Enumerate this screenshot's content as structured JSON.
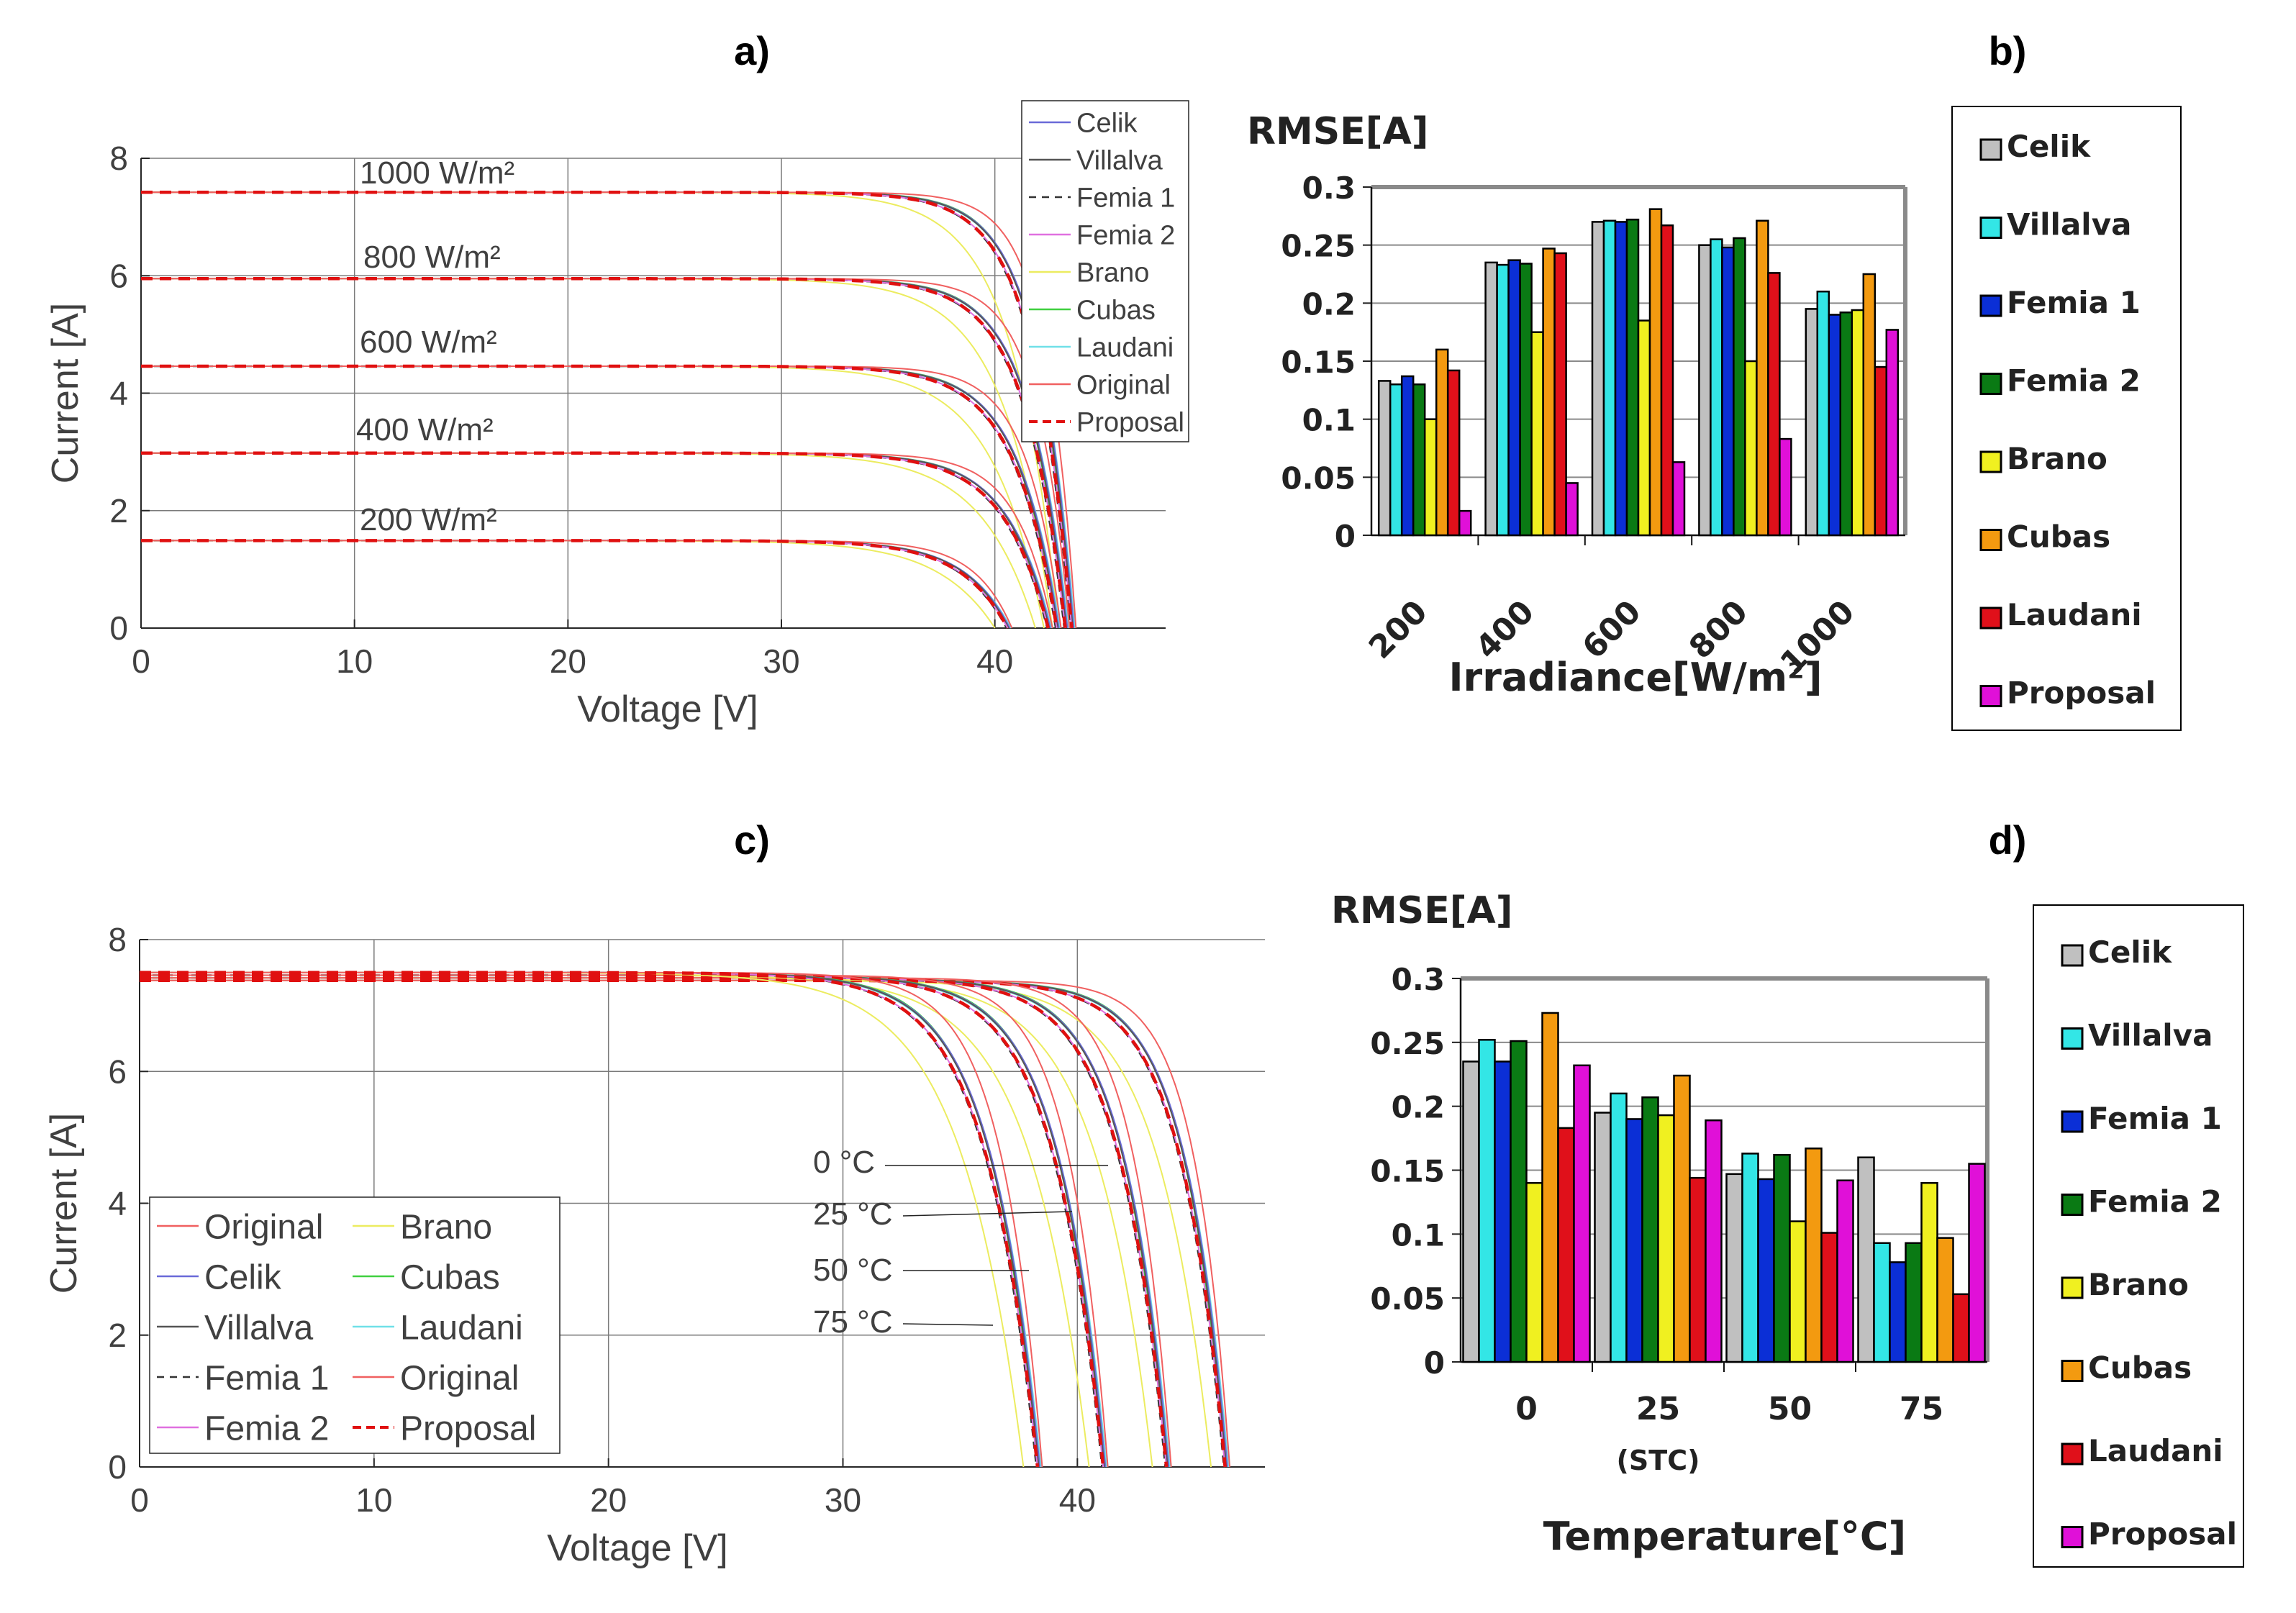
{
  "chart_data": [
    {
      "panel": "a)",
      "type": "line",
      "xlabel": "Voltage [V]",
      "ylabel": "Current [A]",
      "xlim": [
        0,
        48
      ],
      "ylim": [
        0,
        8
      ],
      "xticks": [
        "0",
        "10",
        "20",
        "30",
        "40"
      ],
      "yticks": [
        "0",
        "2",
        "4",
        "6",
        "8"
      ],
      "grid": true,
      "legend_position": "top-right",
      "legend": [
        "Celik",
        "Villalva",
        "Femia 1",
        "Femia 2",
        "Brano",
        "Cubas",
        "Laudani",
        "Original",
        "Proposal"
      ],
      "annotations": [
        "1000 W/m²",
        "800 W/m²",
        "600 W/m²",
        "400 W/m²",
        "200 W/m²"
      ],
      "curves": [
        {
          "label": "1000 W/m²",
          "isc": 7.42,
          "voc": 43.6
        },
        {
          "label": "800 W/m²",
          "isc": 5.95,
          "voc": 43.3
        },
        {
          "label": "600 W/m²",
          "isc": 4.46,
          "voc": 42.9
        },
        {
          "label": "400 W/m²",
          "isc": 2.98,
          "voc": 42.5
        },
        {
          "label": "200 W/m²",
          "isc": 1.49,
          "voc": 40.6
        }
      ]
    },
    {
      "panel": "b)",
      "type": "bar",
      "ylabel": "RMSE[A]",
      "xlabel": "Irradiance[W/m²]",
      "ylim": [
        0,
        0.3
      ],
      "yticks": [
        "0",
        "0.05",
        "0.1",
        "0.15",
        "0.2",
        "0.25",
        "0.3"
      ],
      "categories": [
        "200",
        "400",
        "600",
        "800",
        "1000"
      ],
      "series": [
        {
          "name": "Celik",
          "values": [
            0.133,
            0.235,
            0.27,
            0.25,
            0.195
          ]
        },
        {
          "name": "Villalva",
          "values": [
            0.13,
            0.233,
            0.271,
            0.255,
            0.21
          ]
        },
        {
          "name": "Femia 1",
          "values": [
            0.137,
            0.237,
            0.27,
            0.248,
            0.19
          ]
        },
        {
          "name": "Femia 2",
          "values": [
            0.13,
            0.234,
            0.272,
            0.256,
            0.192
          ]
        },
        {
          "name": "Brano",
          "values": [
            0.1,
            0.175,
            0.185,
            0.15,
            0.194
          ]
        },
        {
          "name": "Cubas",
          "values": [
            0.16,
            0.247,
            0.281,
            0.271,
            0.225
          ]
        },
        {
          "name": "Laudani",
          "values": [
            0.142,
            0.243,
            0.267,
            0.226,
            0.145
          ]
        },
        {
          "name": "Proposal",
          "values": [
            0.021,
            0.045,
            0.063,
            0.083,
            0.177
          ]
        }
      ]
    },
    {
      "panel": "c)",
      "type": "line",
      "xlabel": "Voltage [V]",
      "ylabel": "Current [A]",
      "xlim": [
        0,
        48
      ],
      "ylim": [
        0,
        8
      ],
      "xticks": [
        "0",
        "10",
        "20",
        "30",
        "40"
      ],
      "yticks": [
        "0",
        "2",
        "4",
        "6",
        "8"
      ],
      "grid": true,
      "legend_position": "bottom-left",
      "legend": [
        "Original",
        "Celik",
        "Villalva",
        "Femia 1",
        "Femia 2",
        "Brano",
        "Cubas",
        "Laudani",
        "Original",
        "Proposal"
      ],
      "annotations": [
        "0 °C",
        "25 °C",
        "50 °C",
        "75 °C"
      ],
      "curves": [
        {
          "label": "0 °C",
          "isc": 7.38,
          "voc": 46.3
        },
        {
          "label": "25 °C",
          "isc": 7.42,
          "voc": 43.8
        },
        {
          "label": "50 °C",
          "isc": 7.46,
          "voc": 41.1
        },
        {
          "label": "75 °C",
          "isc": 7.5,
          "voc": 38.3
        }
      ]
    },
    {
      "panel": "d)",
      "type": "bar",
      "ylabel": "RMSE[A]",
      "xlabel": "Temperature[°C]",
      "ylim": [
        0,
        0.3
      ],
      "yticks": [
        "0",
        "0.05",
        "0.1",
        "0.15",
        "0.2",
        "0.25",
        "0.3"
      ],
      "categories": [
        "0",
        "25",
        "50",
        "75"
      ],
      "category_note": "(STC)",
      "series": [
        {
          "name": "Celik",
          "values": [
            0.235,
            0.195,
            0.147,
            0.16
          ]
        },
        {
          "name": "Villalva",
          "values": [
            0.252,
            0.21,
            0.163,
            0.093
          ]
        },
        {
          "name": "Femia 1",
          "values": [
            0.235,
            0.19,
            0.143,
            0.078
          ]
        },
        {
          "name": "Femia 2",
          "values": [
            0.251,
            0.207,
            0.162,
            0.093
          ]
        },
        {
          "name": "Brano",
          "values": [
            0.14,
            0.193,
            0.11,
            0.14
          ]
        },
        {
          "name": "Cubas",
          "values": [
            0.273,
            0.224,
            0.167,
            0.097
          ]
        },
        {
          "name": "Laudani",
          "values": [
            0.183,
            0.144,
            0.101,
            0.053
          ]
        },
        {
          "name": "Proposal",
          "values": [
            0.232,
            0.189,
            0.142,
            0.155
          ]
        }
      ]
    }
  ],
  "colors": {
    "Celik": "#c0c0c0",
    "Villalva": "#33e6e6",
    "Femia 1": "#0b2fd6",
    "Femia 2": "#0a7a14",
    "Brano": "#f0f020",
    "Cubas": "#f39a10",
    "Laudani": "#e0101a",
    "Proposal": "#e010d8",
    "line_Celik": "#6a6ad8",
    "line_Villalva": "#555555",
    "line_Femia 1": "#333333",
    "line_Femia 2": "#e070e0",
    "line_Brano": "#ecec60",
    "line_Cubas": "#40d040",
    "line_Laudani": "#70e0e8",
    "line_Original": "#f06060",
    "line_Proposal": "#e01010"
  }
}
